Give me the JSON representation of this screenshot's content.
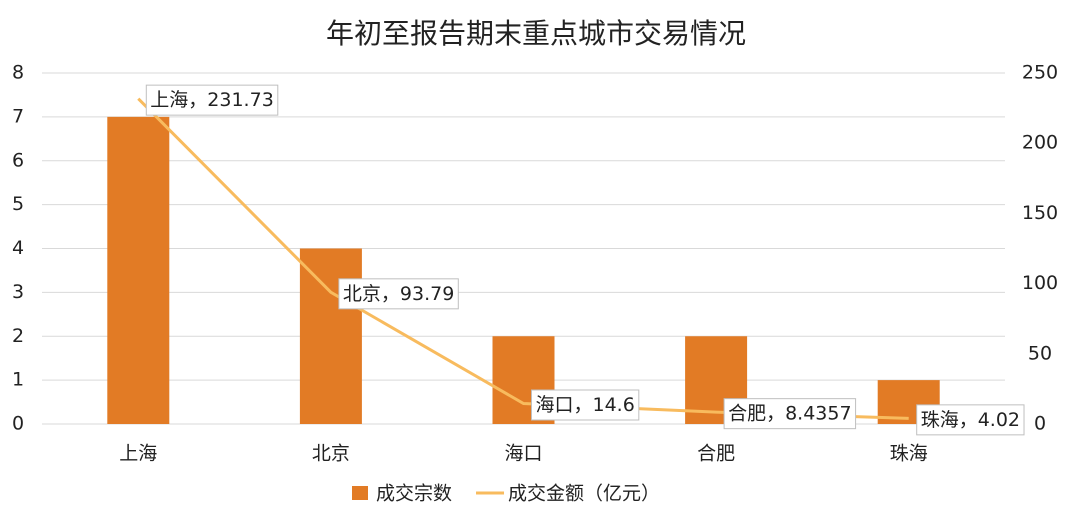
{
  "chart_data": {
    "type": "combo",
    "title": "年初至报告期末重点城市交易情况",
    "categories": [
      "上海",
      "北京",
      "海口",
      "合肥",
      "珠海"
    ],
    "series": [
      {
        "name": "成交宗数",
        "type": "bar",
        "color": "#e27b25",
        "values": [
          7,
          4,
          2,
          2,
          1
        ]
      },
      {
        "name": "成交金额（亿元）",
        "type": "line",
        "axis": "y2",
        "color": "#f8bb5e",
        "values": [
          231.73,
          93.79,
          14.6,
          8.4357,
          4.02
        ],
        "value_labels": [
          "上海，231.73",
          "北京，93.79",
          "海口，14.6",
          "合肥，8.4357",
          "珠海，4.02"
        ]
      }
    ],
    "ylim": [
      0,
      8
    ],
    "yticks": [
      0,
      1,
      2,
      3,
      4,
      5,
      6,
      7,
      8
    ],
    "y2lim": [
      0,
      250
    ],
    "y2ticks": [
      0,
      50,
      100,
      150,
      200,
      250
    ],
    "grid": true,
    "legend": "bottom"
  }
}
